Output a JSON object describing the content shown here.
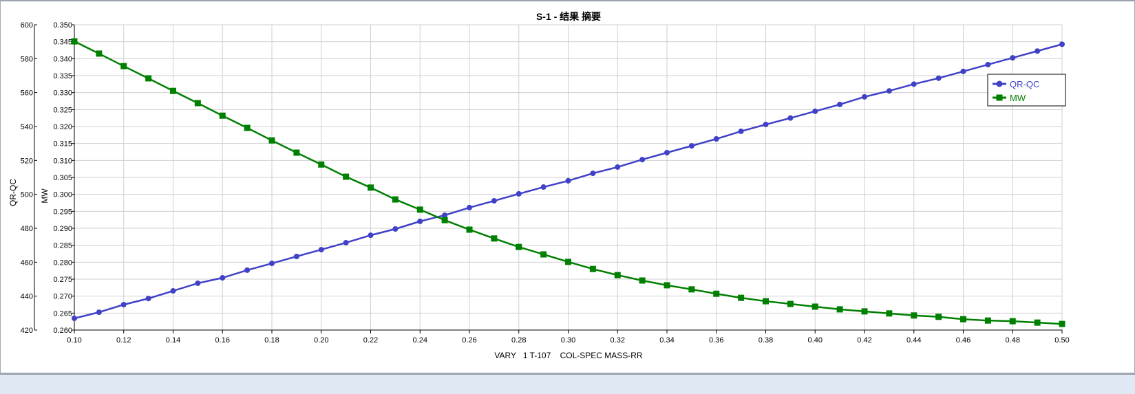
{
  "chart_data": {
    "type": "line",
    "title": "S-1 - 结果 摘要",
    "xlabel": "VARY   1 T-107    COL-SPEC MASS-RR",
    "ylabel_left": "QR-QC",
    "ylabel_right": "MW",
    "xlim": [
      0.1,
      0.5
    ],
    "ylim_left": [
      420,
      600
    ],
    "ylim_mw": [
      0.26,
      0.35
    ],
    "grid": true,
    "legend_position": "top-right",
    "x_ticks": [
      "0.10",
      "0.12",
      "0.14",
      "0.16",
      "0.18",
      "0.20",
      "0.22",
      "0.24",
      "0.26",
      "0.28",
      "0.30",
      "0.32",
      "0.34",
      "0.36",
      "0.38",
      "0.40",
      "0.42",
      "0.44",
      "0.46",
      "0.48",
      "0.50"
    ],
    "y_left_ticks": [
      "420",
      "440",
      "460",
      "480",
      "500",
      "520",
      "540",
      "560",
      "580",
      "600"
    ],
    "y_mw_ticks": [
      "0.260",
      "0.265",
      "0.270",
      "0.275",
      "0.280",
      "0.285",
      "0.290",
      "0.295",
      "0.300",
      "0.305",
      "0.310",
      "0.315",
      "0.320",
      "0.325",
      "0.330",
      "0.335",
      "0.340",
      "0.345",
      "0.350"
    ],
    "x": [
      0.1,
      0.11,
      0.12,
      0.13,
      0.14,
      0.15,
      0.16,
      0.17,
      0.18,
      0.19,
      0.2,
      0.21,
      0.22,
      0.23,
      0.24,
      0.25,
      0.26,
      0.27,
      0.28,
      0.29,
      0.3,
      0.31,
      0.32,
      0.33,
      0.34,
      0.35,
      0.36,
      0.37,
      0.38,
      0.39,
      0.4,
      0.41,
      0.42,
      0.43,
      0.44,
      0.45,
      0.46,
      0.47,
      0.48,
      0.49,
      0.5
    ],
    "series": [
      {
        "name": "QR-QC",
        "axis": "left",
        "color": "#4040c8",
        "marker": "circle",
        "values": [
          426.9,
          430.5,
          435.0,
          438.6,
          443.1,
          447.6,
          450.8,
          455.3,
          459.3,
          463.4,
          467.4,
          471.5,
          475.9,
          479.6,
          484.1,
          487.7,
          492.2,
          496.2,
          500.3,
          504.3,
          508.0,
          512.4,
          516.1,
          520.5,
          524.6,
          528.6,
          532.7,
          537.2,
          541.2,
          545.0,
          549.0,
          553.0,
          557.5,
          561.0,
          565.0,
          568.5,
          572.5,
          576.5,
          580.5,
          584.5,
          588.5
        ]
      },
      {
        "name": "MW",
        "axis": "mw",
        "color": "#008000",
        "marker": "square",
        "values": [
          0.3451,
          0.3415,
          0.3378,
          0.3342,
          0.3305,
          0.3269,
          0.3232,
          0.3196,
          0.3159,
          0.3123,
          0.3088,
          0.3052,
          0.302,
          0.2985,
          0.2955,
          0.2924,
          0.2896,
          0.287,
          0.2845,
          0.2823,
          0.2801,
          0.278,
          0.2762,
          0.2746,
          0.2732,
          0.272,
          0.2707,
          0.2695,
          0.2685,
          0.2677,
          0.2669,
          0.2661,
          0.2655,
          0.2649,
          0.2643,
          0.2639,
          0.2632,
          0.2628,
          0.2626,
          0.2622,
          0.2618
        ]
      }
    ]
  }
}
